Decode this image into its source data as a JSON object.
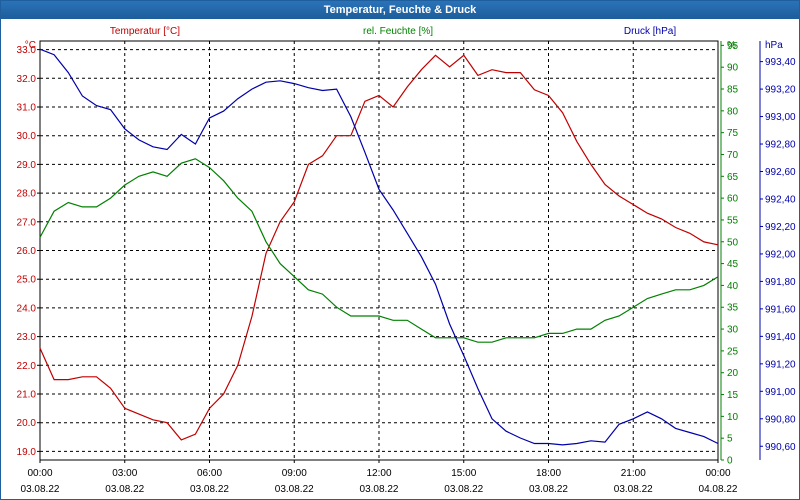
{
  "window": {
    "title": "Temperatur, Feuchte & Druck"
  },
  "colors": {
    "temperature": "#c00000",
    "humidity": "#008000",
    "pressure": "#0000aa",
    "titlebar": "#1f5f9e"
  },
  "chart_data": {
    "type": "line",
    "title": "Temperatur, Feuchte & Druck",
    "grid": true,
    "x_unit": "hours",
    "x_ticks": [
      {
        "time": "00:00",
        "date": "03.08.22"
      },
      {
        "time": "03:00",
        "date": "03.08.22"
      },
      {
        "time": "06:00",
        "date": "03.08.22"
      },
      {
        "time": "09:00",
        "date": "03.08.22"
      },
      {
        "time": "12:00",
        "date": "03.08.22"
      },
      {
        "time": "15:00",
        "date": "03.08.22"
      },
      {
        "time": "18:00",
        "date": "03.08.22"
      },
      {
        "time": "21:00",
        "date": "03.08.22"
      },
      {
        "time": "00:00",
        "date": "04.08.22"
      }
    ],
    "xlim": [
      0,
      24
    ],
    "axes": {
      "temperature": {
        "label": "Temperatur [°C]",
        "unit": "°C",
        "ylim": [
          18.7,
          33.3
        ],
        "ticks": [
          "19.0",
          "20.0",
          "21.0",
          "22.0",
          "23.0",
          "24.0",
          "25.0",
          "26.0",
          "27.0",
          "28.0",
          "29.0",
          "30.0",
          "31.0",
          "32.0",
          "33.0"
        ]
      },
      "humidity": {
        "label": "rel. Feuchte [%]",
        "unit": "%",
        "ylim": [
          0,
          96
        ],
        "ticks": [
          "0",
          "5",
          "10",
          "15",
          "20",
          "25",
          "30",
          "35",
          "40",
          "45",
          "50",
          "55",
          "60",
          "65",
          "70",
          "75",
          "80",
          "85",
          "90",
          "95"
        ]
      },
      "pressure": {
        "label": "Druck [hPa]",
        "unit": "hPa",
        "ylim": [
          990.5,
          993.55
        ],
        "ticks": [
          "990,60",
          "990,80",
          "991,00",
          "991,20",
          "991,40",
          "991,60",
          "991,80",
          "992,00",
          "992,20",
          "992,40",
          "992,60",
          "992,80",
          "993,00",
          "993,20",
          "993,40"
        ]
      }
    },
    "series": [
      {
        "name": "Temperatur [°C]",
        "axis": "temperature",
        "x": [
          0,
          0.5,
          1,
          1.5,
          2,
          2.5,
          3,
          3.5,
          4,
          4.5,
          5,
          5.5,
          6,
          6.5,
          7,
          7.5,
          8,
          8.5,
          9,
          9.5,
          10,
          10.5,
          11,
          11.5,
          12,
          12.5,
          13,
          13.5,
          14,
          14.5,
          15,
          15.5,
          16,
          16.5,
          17,
          17.5,
          18,
          18.5,
          19,
          19.5,
          20,
          20.5,
          21,
          21.5,
          22,
          22.5,
          23,
          23.5,
          24
        ],
        "values": [
          22.6,
          21.5,
          21.5,
          21.6,
          21.6,
          21.2,
          20.5,
          20.3,
          20.1,
          20.0,
          19.4,
          19.6,
          20.5,
          21.0,
          22.0,
          23.7,
          25.9,
          27.0,
          27.7,
          29.0,
          29.3,
          30.0,
          30.0,
          31.2,
          31.4,
          31.0,
          31.7,
          32.3,
          32.8,
          32.4,
          32.8,
          32.1,
          32.3,
          32.2,
          32.2,
          31.6,
          31.4,
          30.8,
          29.8,
          29.0,
          28.3,
          27.9,
          27.6,
          27.3,
          27.1,
          26.8,
          26.6,
          26.3,
          26.2
        ],
        "color": "#c00000"
      },
      {
        "name": "rel. Feuchte [%]",
        "axis": "humidity",
        "x": [
          0,
          0.5,
          1,
          1.5,
          2,
          2.5,
          3,
          3.5,
          4,
          4.5,
          5,
          5.5,
          6,
          6.5,
          7,
          7.5,
          8,
          8.5,
          9,
          9.5,
          10,
          10.5,
          11,
          11.5,
          12,
          12.5,
          13,
          13.5,
          14,
          14.5,
          15,
          15.5,
          16,
          16.5,
          17,
          17.5,
          18,
          18.5,
          19,
          19.5,
          20,
          20.5,
          21,
          21.5,
          22,
          22.5,
          23,
          23.5,
          24
        ],
        "values": [
          51,
          57,
          59,
          58,
          58,
          60,
          63,
          65,
          66,
          65,
          68,
          69,
          67,
          64,
          60,
          57,
          50,
          45,
          42,
          39,
          38,
          35,
          33,
          33,
          33,
          32,
          32,
          30,
          28,
          28,
          28,
          27,
          27,
          28,
          28,
          28,
          29,
          29,
          30,
          30,
          32,
          33,
          35,
          37,
          38,
          39,
          39,
          40,
          42
        ],
        "color": "#008000"
      },
      {
        "name": "Druck [hPa]",
        "axis": "pressure",
        "x": [
          0,
          0.5,
          1,
          1.5,
          2,
          2.5,
          3,
          3.5,
          4,
          4.5,
          5,
          5.5,
          6,
          6.5,
          7,
          7.5,
          8,
          8.5,
          9,
          9.5,
          10,
          10.5,
          11,
          11.5,
          12,
          12.5,
          13,
          13.5,
          14,
          14.5,
          15,
          15.5,
          16,
          16.5,
          17,
          17.5,
          18,
          18.5,
          19,
          19.5,
          20,
          20.5,
          21,
          21.5,
          22,
          22.5,
          23,
          23.5,
          24
        ],
        "values": [
          993.49,
          993.45,
          993.32,
          993.15,
          993.08,
          993.05,
          992.91,
          992.83,
          992.78,
          992.76,
          992.87,
          992.8,
          992.99,
          993.04,
          993.13,
          993.2,
          993.25,
          993.26,
          993.24,
          993.21,
          993.19,
          993.2,
          993.0,
          992.74,
          992.47,
          992.32,
          992.15,
          991.98,
          991.78,
          991.49,
          991.26,
          991.02,
          990.8,
          990.71,
          990.66,
          990.62,
          990.62,
          990.61,
          990.62,
          990.64,
          990.63,
          990.76,
          990.8,
          990.85,
          990.8,
          990.73,
          990.7,
          990.67,
          990.62
        ],
        "color": "#0000aa"
      }
    ]
  }
}
